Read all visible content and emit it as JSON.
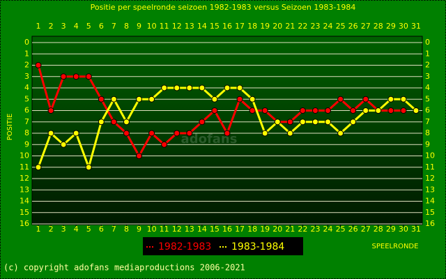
{
  "chart_data": {
    "type": "line",
    "title": "Positie per speelronde seizoen 1982-1983 versus Seizoen 1983-1984",
    "ylabel": "POSITIE",
    "xlabel": "SPEELRONDE",
    "footer": "(c) copyright adofans mediaproductions 2006-2021",
    "watermark": "adofans",
    "x": [
      1,
      2,
      3,
      4,
      5,
      6,
      7,
      8,
      9,
      10,
      11,
      12,
      13,
      14,
      15,
      16,
      17,
      18,
      19,
      20,
      21,
      22,
      23,
      24,
      25,
      26,
      27,
      28,
      29,
      30,
      31
    ],
    "xlim": [
      1,
      31
    ],
    "xticks": [
      1,
      2,
      3,
      4,
      5,
      6,
      7,
      8,
      9,
      10,
      11,
      12,
      13,
      14,
      15,
      16,
      17,
      18,
      19,
      20,
      21,
      22,
      23,
      24,
      25,
      26,
      27,
      28,
      29,
      30,
      31
    ],
    "ylim": [
      16,
      0
    ],
    "yticks": [
      0,
      1,
      2,
      3,
      4,
      5,
      6,
      7,
      8,
      9,
      10,
      11,
      12,
      13,
      14,
      15,
      16
    ],
    "grid": true,
    "series": [
      {
        "name": "1982-1983",
        "color": "#ff0000",
        "values": [
          2,
          6,
          3,
          3,
          3,
          5,
          7,
          8,
          10,
          8,
          9,
          8,
          8,
          7,
          6,
          8,
          5,
          6,
          6,
          7,
          7,
          6,
          6,
          6,
          5,
          6,
          5,
          6,
          6,
          6,
          null
        ]
      },
      {
        "name": "1983-1984",
        "color": "#ffff00",
        "values": [
          11,
          8,
          9,
          8,
          11,
          7,
          5,
          7,
          5,
          5,
          4,
          4,
          4,
          4,
          5,
          4,
          4,
          5,
          8,
          7,
          8,
          7,
          7,
          7,
          8,
          7,
          6,
          6,
          5,
          5,
          6
        ]
      }
    ]
  }
}
